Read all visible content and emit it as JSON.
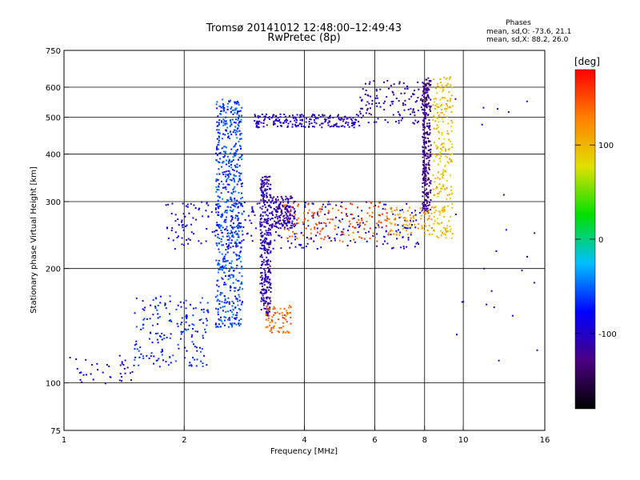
{
  "chart_data": {
    "type": "scatter",
    "title": "Tromsø 20141012 12:48:00–12:49:43",
    "subtitle": "RwPretec (8p)",
    "stats": {
      "heading": "Phases",
      "o_line": "mean, sd,O: -73.6, 21.1",
      "x_line": "mean, sd,X:  88.2, 26.0"
    },
    "xlabel": "Frequency [MHz]",
    "ylabel": "Stationary phase Virtual Height [km]",
    "x_scale": "log",
    "y_scale": "log",
    "xlim": [
      1,
      16
    ],
    "ylim": [
      75,
      750
    ],
    "x_ticks": [
      1,
      2,
      4,
      6,
      8,
      10,
      16
    ],
    "y_ticks": [
      75,
      100,
      200,
      300,
      400,
      500,
      600,
      750
    ],
    "grid_x": [
      2,
      4,
      6,
      8,
      10
    ],
    "grid_y": [
      100,
      200,
      300,
      400,
      500,
      600
    ],
    "colorbar": {
      "label": "[deg]",
      "range": [
        -180,
        180
      ],
      "ticks": [
        100,
        0,
        -100
      ],
      "colors": [
        "#000000",
        "#4b0082",
        "#0000ff",
        "#00bfff",
        "#00e000",
        "#e0e000",
        "#ff8000",
        "#ff0000"
      ]
    },
    "series": [
      {
        "x_range": [
          1.0,
          1.5
        ],
        "y_range": [
          98,
          118
        ],
        "phase": -95,
        "n": 40
      },
      {
        "x_range": [
          1.5,
          2.3
        ],
        "y_range": [
          110,
          170
        ],
        "phase": -70,
        "n": 180
      },
      {
        "x_range": [
          2.4,
          2.8
        ],
        "y_range": [
          140,
          560
        ],
        "phase": -60,
        "n": 650
      },
      {
        "x_range": [
          3.1,
          3.3
        ],
        "y_range": [
          150,
          350
        ],
        "phase": -110,
        "n": 320
      },
      {
        "x_range": [
          3.3,
          3.8
        ],
        "y_range": [
          255,
          310
        ],
        "phase": -115,
        "n": 160
      },
      {
        "x_range": [
          3.2,
          3.7
        ],
        "y_range": [
          135,
          160
        ],
        "phase": 140,
        "n": 70
      },
      {
        "x_range": [
          3.0,
          5.5
        ],
        "y_range": [
          470,
          510
        ],
        "phase": -100,
        "n": 200
      },
      {
        "x_range": [
          5.5,
          8.0
        ],
        "y_range": [
          480,
          630
        ],
        "phase": -110,
        "n": 120
      },
      {
        "x_range": [
          1.8,
          7.8
        ],
        "y_range": [
          225,
          300
        ],
        "phase": -90,
        "n": 300
      },
      {
        "x_range": [
          3.5,
          6.5
        ],
        "y_range": [
          235,
          300
        ],
        "phase": 150,
        "n": 140
      },
      {
        "x_range": [
          7.9,
          8.3
        ],
        "y_range": [
          280,
          640
        ],
        "phase": -125,
        "n": 280
      },
      {
        "x_range": [
          8.4,
          9.4
        ],
        "y_range": [
          240,
          640
        ],
        "phase": 95,
        "n": 240
      },
      {
        "x_range": [
          6.5,
          8.5
        ],
        "y_range": [
          245,
          290
        ],
        "phase": 110,
        "n": 90
      },
      {
        "x_range": [
          9.5,
          15.5
        ],
        "y_range": [
          110,
          580
        ],
        "phase": -95,
        "n": 24
      }
    ]
  }
}
